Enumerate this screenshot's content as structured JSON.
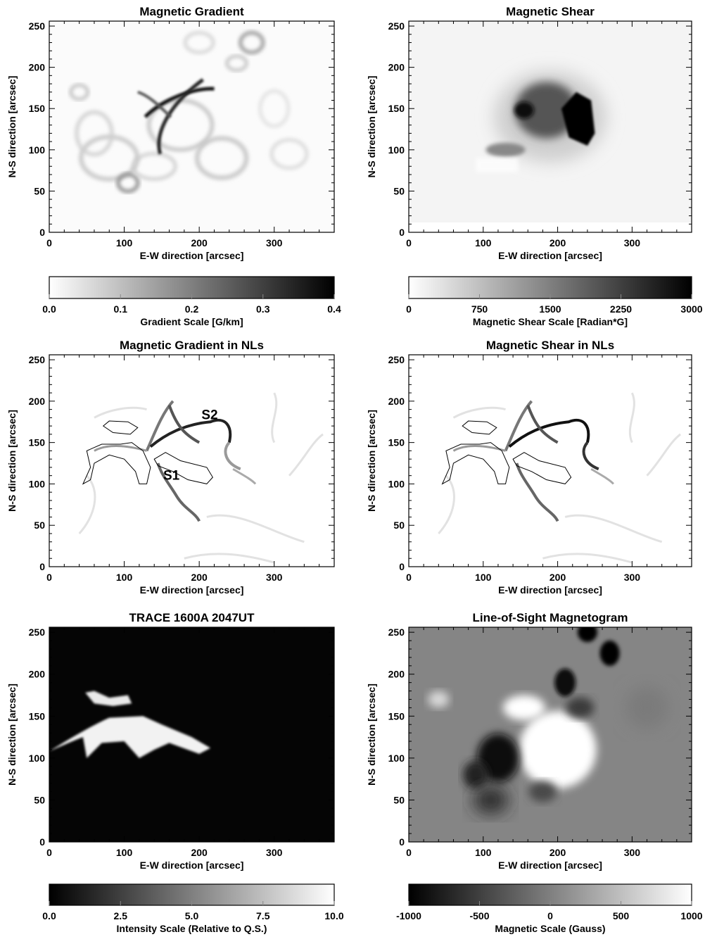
{
  "chart_data": [
    {
      "type": "heatmap",
      "title": "Magnetic Gradient",
      "xlabel": "E-W direction [arcsec]",
      "ylabel": "N-S direction [arcsec]",
      "xlim": [
        0,
        380
      ],
      "ylim": [
        0,
        256
      ],
      "xticks": [
        "0",
        "100",
        "200",
        "300"
      ],
      "yticks": [
        "0",
        "50",
        "100",
        "150",
        "200",
        "250"
      ],
      "font": "serif",
      "map": "gradient",
      "colorbar": {
        "label": "Gradient Scale [G/km]",
        "ticks": [
          "0.0",
          "0.1",
          "0.2",
          "0.3",
          "0.4"
        ],
        "colors": [
          "#ffffff",
          "#000000"
        ]
      }
    },
    {
      "type": "heatmap",
      "title": "Magnetic Shear",
      "xlabel": "E-W direction [arcsec]",
      "ylabel": "N-S direction [arcsec]",
      "xlim": [
        0,
        380
      ],
      "ylim": [
        0,
        256
      ],
      "xticks": [
        "0",
        "100",
        "200",
        "300"
      ],
      "yticks": [
        "0",
        "50",
        "100",
        "150",
        "200",
        "250"
      ],
      "font": "sans",
      "map": "shear",
      "colorbar": {
        "label": "Magnetic Shear Scale [Radian*G]",
        "ticks": [
          "0",
          "750",
          "1500",
          "2250",
          "3000"
        ],
        "colors": [
          "#ffffff",
          "#000000"
        ]
      }
    },
    {
      "type": "heatmap",
      "title": "Magnetic Gradient in NLs",
      "xlabel": "E-W direction [arcsec]",
      "ylabel": "N-S direction [arcsec]",
      "xlim": [
        0,
        380
      ],
      "ylim": [
        0,
        256
      ],
      "xticks": [
        "0",
        "100",
        "200",
        "300"
      ],
      "yticks": [
        "0",
        "50",
        "100",
        "150",
        "200",
        "250"
      ],
      "font": "sans",
      "map": "nl",
      "annotations": [
        {
          "text": "S2",
          "x": 203,
          "y": 178
        },
        {
          "text": "S1",
          "x": 152,
          "y": 105
        }
      ]
    },
    {
      "type": "heatmap",
      "title": "Magnetic Shear in NLs",
      "xlabel": "E-W direction [arcsec]",
      "ylabel": "N-S direction [arcsec]",
      "xlim": [
        0,
        380
      ],
      "ylim": [
        0,
        256
      ],
      "xticks": [
        "0",
        "100",
        "200",
        "300"
      ],
      "yticks": [
        "0",
        "50",
        "100",
        "150",
        "200",
        "250"
      ],
      "font": "sans",
      "map": "nl2"
    },
    {
      "type": "heatmap",
      "title": "TRACE 1600A 2047UT",
      "xlabel": "E-W direction [arcsec]",
      "ylabel": "N-S direction [arcsec]",
      "xlim": [
        0,
        380
      ],
      "ylim": [
        0,
        256
      ],
      "xticks": [
        "0",
        "100",
        "200",
        "300"
      ],
      "yticks": [
        "0",
        "50",
        "100",
        "150",
        "200",
        "250"
      ],
      "font": "sans",
      "map": "trace",
      "colorbar": {
        "label": "Intensity Scale (Relative to Q.S.)",
        "ticks": [
          "0.0",
          "2.5",
          "5.0",
          "7.5",
          "10.0"
        ],
        "colors": [
          "#000000",
          "#ffffff"
        ]
      }
    },
    {
      "type": "heatmap",
      "title": "Line-of-Sight Magnetogram",
      "xlabel": "E-W direction [arcsec]",
      "ylabel": "N-S direction [arcsec]",
      "xlim": [
        0,
        380
      ],
      "ylim": [
        0,
        256
      ],
      "xticks": [
        "0",
        "100",
        "200",
        "300"
      ],
      "yticks": [
        "0",
        "50",
        "100",
        "150",
        "200",
        "250"
      ],
      "font": "sans",
      "map": "los",
      "colorbar": {
        "label": "Magnetic Scale (Gauss)",
        "ticks": [
          "-1000",
          "-500",
          "0",
          "500",
          "1000"
        ],
        "colors": [
          "#000000",
          "#ffffff"
        ]
      }
    }
  ]
}
